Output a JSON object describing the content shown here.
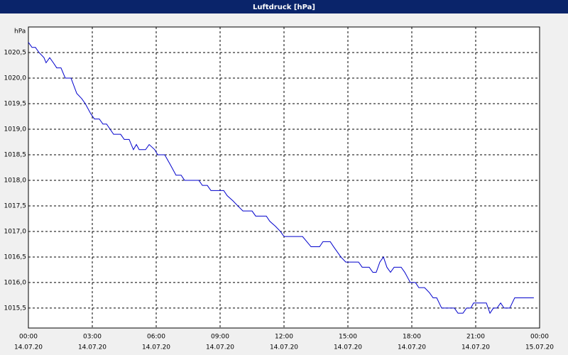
{
  "chart_data": {
    "type": "line",
    "title": "Luftdruck [hPa]",
    "y_unit_label": "hPa",
    "x": [
      0,
      0.17,
      0.33,
      0.5,
      0.73,
      0.83,
      1,
      1.17,
      1.33,
      1.53,
      1.73,
      2,
      2.27,
      2.5,
      2.67,
      2.93,
      3.1,
      3.33,
      3.5,
      3.67,
      4,
      4.33,
      4.5,
      4.73,
      4.93,
      5.07,
      5.2,
      5.5,
      5.67,
      5.93,
      6.07,
      6.4,
      6.67,
      6.93,
      7.17,
      7.33,
      8,
      8.17,
      8.4,
      8.57,
      9.17,
      9.33,
      9.6,
      9.83,
      10.07,
      10.5,
      10.67,
      11.17,
      11.33,
      11.6,
      11.83,
      12,
      12.87,
      13.07,
      13.27,
      13.67,
      13.83,
      14.17,
      14.33,
      14.67,
      14.9,
      15.5,
      15.67,
      16,
      16.17,
      16.33,
      16.5,
      16.67,
      16.83,
      17,
      17.17,
      17.5,
      17.67,
      17.93,
      18.17,
      18.33,
      18.6,
      18.83,
      19,
      19.17,
      19.4,
      20,
      20.17,
      20.4,
      20.57,
      20.77,
      20.9,
      21.5,
      21.67,
      21.83,
      22,
      22.17,
      22.33,
      22.6,
      22.83,
      23.73
    ],
    "series": [
      {
        "name": "Luftdruck",
        "color": "#0000cc",
        "values": [
          1020.7,
          1020.6,
          1020.6,
          1020.5,
          1020.4,
          1020.3,
          1020.4,
          1020.3,
          1020.2,
          1020.2,
          1020.0,
          1020.0,
          1019.7,
          1019.6,
          1019.5,
          1019.3,
          1019.2,
          1019.2,
          1019.1,
          1019.1,
          1018.9,
          1018.9,
          1018.8,
          1018.8,
          1018.6,
          1018.7,
          1018.6,
          1018.6,
          1018.7,
          1018.6,
          1018.5,
          1018.5,
          1018.3,
          1018.1,
          1018.1,
          1018.0,
          1018.0,
          1017.9,
          1017.9,
          1017.8,
          1017.8,
          1017.7,
          1017.6,
          1017.5,
          1017.4,
          1017.4,
          1017.3,
          1017.3,
          1017.2,
          1017.1,
          1017.0,
          1016.9,
          1016.9,
          1016.8,
          1016.7,
          1016.7,
          1016.8,
          1016.8,
          1016.7,
          1016.5,
          1016.4,
          1016.4,
          1016.3,
          1016.3,
          1016.2,
          1016.2,
          1016.4,
          1016.5,
          1016.3,
          1016.2,
          1016.3,
          1016.3,
          1016.2,
          1016.0,
          1016.0,
          1015.9,
          1015.9,
          1015.8,
          1015.7,
          1015.7,
          1015.5,
          1015.5,
          1015.4,
          1015.4,
          1015.5,
          1015.5,
          1015.6,
          1015.6,
          1015.4,
          1015.5,
          1015.5,
          1015.6,
          1015.5,
          1015.5,
          1015.7,
          1015.7
        ]
      }
    ],
    "xlim": [
      0,
      24
    ],
    "xticks": [
      {
        "value": 0,
        "label": "00:00"
      },
      {
        "value": 3,
        "label": "03:00"
      },
      {
        "value": 6,
        "label": "06:00"
      },
      {
        "value": 9,
        "label": "09:00"
      },
      {
        "value": 12,
        "label": "12:00"
      },
      {
        "value": 15,
        "label": "15:00"
      },
      {
        "value": 18,
        "label": "18:00"
      },
      {
        "value": 21,
        "label": "21:00"
      },
      {
        "value": 24,
        "label": "00:00"
      }
    ],
    "xtick_dates": [
      "14.07.20",
      "14.07.20",
      "14.07.20",
      "14.07.20",
      "14.07.20",
      "14.07.20",
      "14.07.20",
      "14.07.20",
      "15.07.20"
    ],
    "ylim": [
      1015.11,
      1021
    ],
    "yticks": [
      {
        "value": 1015.5,
        "label": "1015,5"
      },
      {
        "value": 1016,
        "label": "1016,0"
      },
      {
        "value": 1016.5,
        "label": "1016,5"
      },
      {
        "value": 1017,
        "label": "1017,0"
      },
      {
        "value": 1017.5,
        "label": "1017,5"
      },
      {
        "value": 1018,
        "label": "1018,0"
      },
      {
        "value": 1018.5,
        "label": "1018,5"
      },
      {
        "value": 1019,
        "label": "1019,0"
      },
      {
        "value": 1019.5,
        "label": "1019,5"
      },
      {
        "value": 1020,
        "label": "1020,0"
      },
      {
        "value": 1020.5,
        "label": "1020,5"
      }
    ],
    "grid": true
  }
}
